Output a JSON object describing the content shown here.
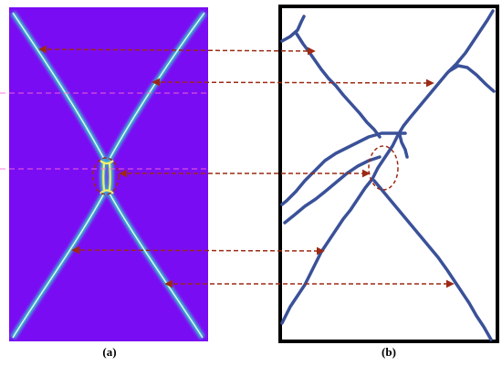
{
  "panels": [
    {
      "id": "a",
      "caption": "(a)",
      "description_icon": "simulation-crack-field"
    },
    {
      "id": "b",
      "caption": "(b)",
      "description_icon": "crack-sketch"
    }
  ],
  "colors": {
    "field_background": "#7a0cf4",
    "crack_glow_outer": "#2fd6c8",
    "crack_glow_inner": "#f4f06a",
    "sketch_crack": "#3a5199",
    "arrow": "#9c2a14",
    "dashed_pink": "#ff6ad0",
    "frame": "#000000"
  }
}
